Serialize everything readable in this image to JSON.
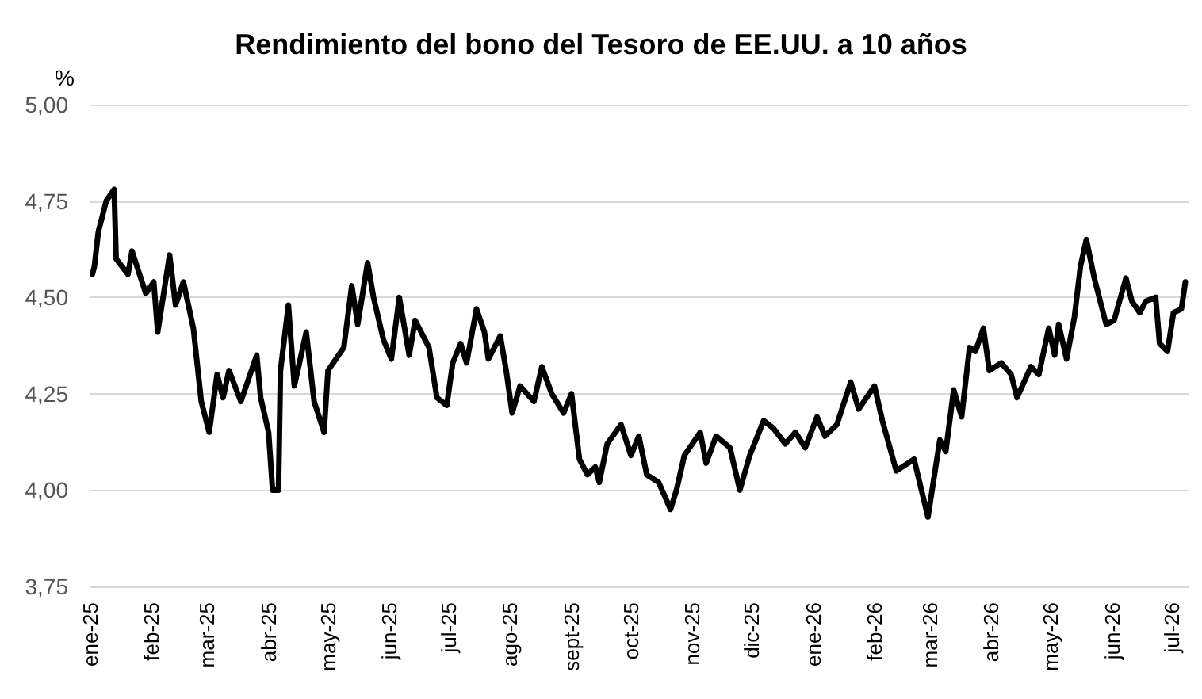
{
  "chart_data": {
    "type": "line",
    "title": "Rendimiento del bono del Tesoro de EE.UU. a 10 años",
    "ylabel": "%",
    "x": [
      "2025-01-02",
      "2025-01-03",
      "2025-01-05",
      "2025-01-09",
      "2025-01-13",
      "2025-01-14",
      "2025-01-20",
      "2025-01-22",
      "2025-01-29",
      "2025-02-02",
      "2025-02-04",
      "2025-02-10",
      "2025-02-13",
      "2025-02-17",
      "2025-02-22",
      "2025-02-26",
      "2025-03-02",
      "2025-03-06",
      "2025-03-09",
      "2025-03-12",
      "2025-03-18",
      "2025-03-26",
      "2025-03-28",
      "2025-04-01",
      "2025-04-03",
      "2025-04-06",
      "2025-04-07",
      "2025-04-11",
      "2025-04-14",
      "2025-04-20",
      "2025-04-24",
      "2025-04-29",
      "2025-05-01",
      "2025-05-05",
      "2025-05-09",
      "2025-05-13",
      "2025-05-16",
      "2025-05-21",
      "2025-05-24",
      "2025-05-29",
      "2025-06-02",
      "2025-06-06",
      "2025-06-11",
      "2025-06-14",
      "2025-06-21",
      "2025-06-25",
      "2025-06-30",
      "2025-07-03",
      "2025-07-07",
      "2025-07-10",
      "2025-07-15",
      "2025-07-19",
      "2025-07-21",
      "2025-07-27",
      "2025-07-30",
      "2025-08-02",
      "2025-08-06",
      "2025-08-13",
      "2025-08-17",
      "2025-08-22",
      "2025-08-28",
      "2025-09-01",
      "2025-09-05",
      "2025-09-09",
      "2025-09-13",
      "2025-09-15",
      "2025-09-19",
      "2025-09-26",
      "2025-10-01",
      "2025-10-05",
      "2025-10-09",
      "2025-10-15",
      "2025-10-21",
      "2025-10-24",
      "2025-10-28",
      "2025-11-05",
      "2025-11-08",
      "2025-11-13",
      "2025-11-20",
      "2025-11-25",
      "2025-11-30",
      "2025-12-07",
      "2025-12-12",
      "2025-12-18",
      "2025-12-23",
      "2025-12-28",
      "2026-01-03",
      "2026-01-07",
      "2026-01-13",
      "2026-01-20",
      "2026-01-24",
      "2026-02-01",
      "2026-02-05",
      "2026-02-12",
      "2026-02-21",
      "2026-02-28",
      "2026-03-06",
      "2026-03-09",
      "2026-03-13",
      "2026-03-17",
      "2026-03-21",
      "2026-03-24",
      "2026-03-28",
      "2026-03-31",
      "2026-04-06",
      "2026-04-11",
      "2026-04-14",
      "2026-04-21",
      "2026-04-25",
      "2026-04-30",
      "2026-05-03",
      "2026-05-05",
      "2026-05-09",
      "2026-05-13",
      "2026-05-16",
      "2026-05-19",
      "2026-05-23",
      "2026-05-29",
      "2026-06-02",
      "2026-06-08",
      "2026-06-11",
      "2026-06-15",
      "2026-06-18",
      "2026-06-23",
      "2026-06-25",
      "2026-06-29",
      "2026-07-02",
      "2026-07-06",
      "2026-07-08"
    ],
    "series": [
      {
        "color": "#000000",
        "values": [
          4.56,
          4.58,
          4.67,
          4.75,
          4.78,
          4.6,
          4.56,
          4.62,
          4.51,
          4.54,
          4.41,
          4.61,
          4.48,
          4.54,
          4.42,
          4.23,
          4.15,
          4.3,
          4.24,
          4.31,
          4.23,
          4.35,
          4.24,
          4.15,
          4.0,
          4.0,
          4.31,
          4.48,
          4.27,
          4.41,
          4.23,
          4.15,
          4.31,
          4.34,
          4.37,
          4.53,
          4.43,
          4.59,
          4.5,
          4.39,
          4.34,
          4.5,
          4.35,
          4.44,
          4.37,
          4.24,
          4.22,
          4.33,
          4.38,
          4.33,
          4.47,
          4.41,
          4.34,
          4.4,
          4.31,
          4.2,
          4.27,
          4.23,
          4.32,
          4.25,
          4.2,
          4.25,
          4.08,
          4.04,
          4.06,
          4.02,
          4.12,
          4.17,
          4.09,
          4.14,
          4.04,
          4.02,
          3.95,
          4.0,
          4.09,
          4.15,
          4.07,
          4.14,
          4.11,
          4.0,
          4.09,
          4.18,
          4.16,
          4.12,
          4.15,
          4.11,
          4.19,
          4.14,
          4.17,
          4.28,
          4.21,
          4.27,
          4.18,
          4.05,
          4.08,
          3.93,
          4.13,
          4.1,
          4.26,
          4.19,
          4.37,
          4.36,
          4.42,
          4.31,
          4.33,
          4.3,
          4.24,
          4.32,
          4.3,
          4.42,
          4.35,
          4.43,
          4.34,
          4.45,
          4.58,
          4.65,
          4.55,
          4.43,
          4.44,
          4.55,
          4.49,
          4.46,
          4.49,
          4.5,
          4.38,
          4.36,
          4.46,
          4.47,
          4.54
        ]
      }
    ],
    "xlim": [
      "2025-01-01",
      "2026-07-10"
    ],
    "xticks": [
      {
        "value": "2025-01-01",
        "label": "ene-25"
      },
      {
        "value": "2025-02-01",
        "label": "feb-25"
      },
      {
        "value": "2025-03-01",
        "label": "mar-25"
      },
      {
        "value": "2025-04-01",
        "label": "abr-25"
      },
      {
        "value": "2025-05-01",
        "label": "may-25"
      },
      {
        "value": "2025-06-01",
        "label": "jun-25"
      },
      {
        "value": "2025-07-01",
        "label": "jul-25"
      },
      {
        "value": "2025-08-01",
        "label": "ago-25"
      },
      {
        "value": "2025-09-01",
        "label": "sept-25"
      },
      {
        "value": "2025-10-01",
        "label": "oct-25"
      },
      {
        "value": "2025-11-01",
        "label": "nov-25"
      },
      {
        "value": "2025-12-01",
        "label": "dic-25"
      },
      {
        "value": "2026-01-01",
        "label": "ene-26"
      },
      {
        "value": "2026-02-01",
        "label": "feb-26"
      },
      {
        "value": "2026-03-01",
        "label": "mar-26"
      },
      {
        "value": "2026-04-01",
        "label": "abr-26"
      },
      {
        "value": "2026-05-01",
        "label": "may-26"
      },
      {
        "value": "2026-06-01",
        "label": "jun-26"
      },
      {
        "value": "2026-07-01",
        "label": "jul-26"
      }
    ],
    "ylim": [
      3.75,
      5
    ],
    "yticks": [
      {
        "value": 3.75,
        "label": "3,75"
      },
      {
        "value": 4,
        "label": "4,00"
      },
      {
        "value": 4.25,
        "label": "4,25"
      },
      {
        "value": 4.5,
        "label": "4,50"
      },
      {
        "value": 4.75,
        "label": "4,75"
      },
      {
        "value": 5,
        "label": "5,00"
      }
    ],
    "grid": "y",
    "marker": "none",
    "line_style": "solid"
  }
}
